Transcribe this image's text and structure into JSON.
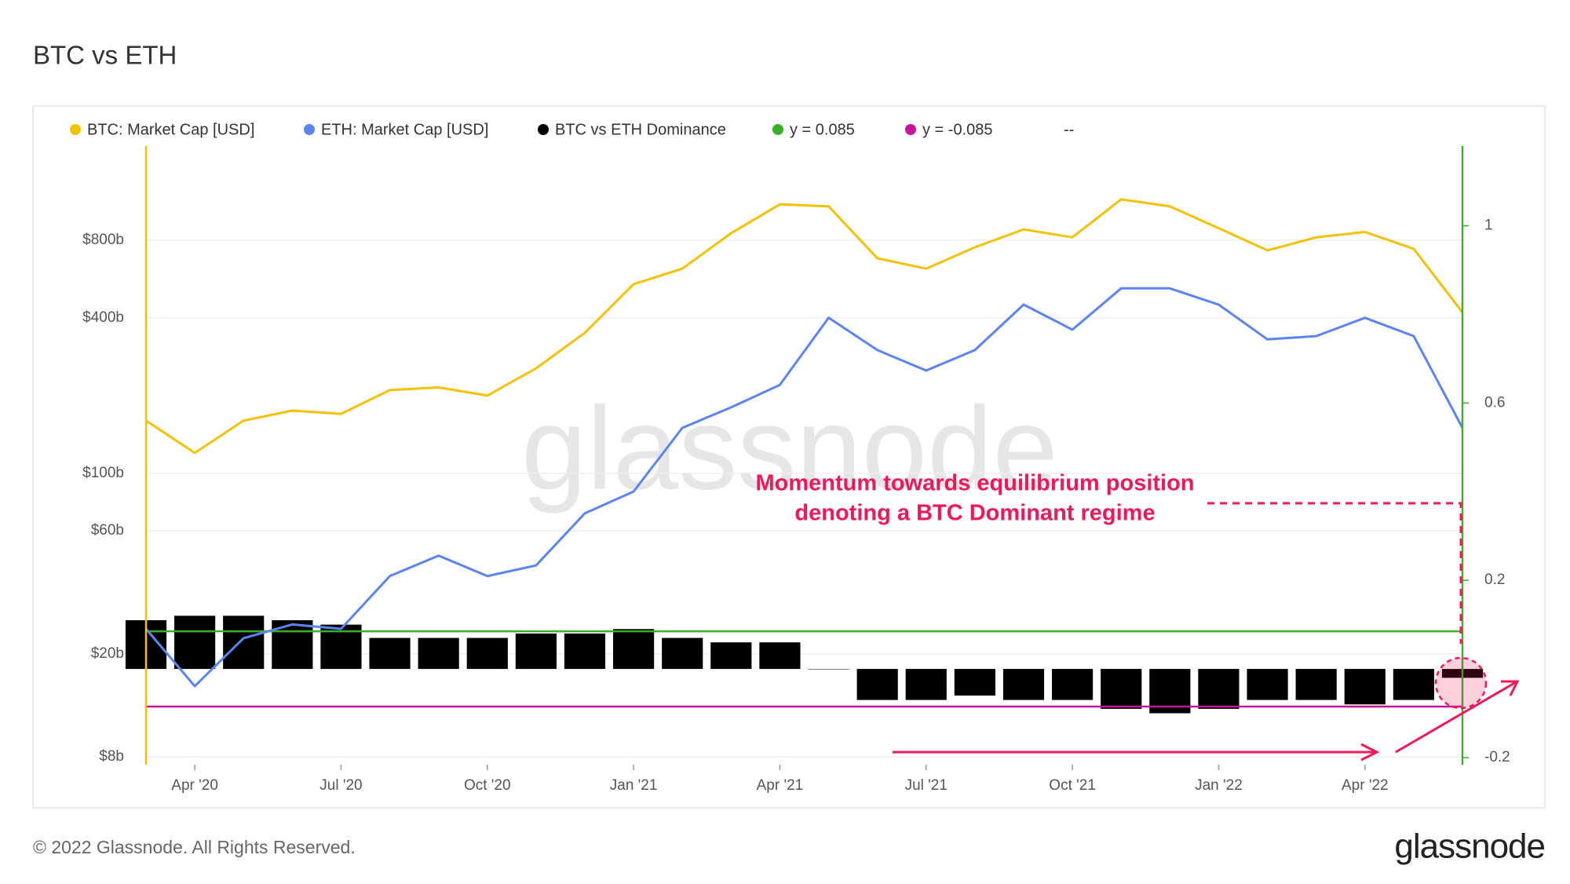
{
  "chart_data": {
    "type": "line",
    "title": "BTC vs ETH",
    "footer": "© 2022 Glassnode. All Rights Reserved.",
    "logo": "glassnode",
    "watermark": "glassnode",
    "legend_placeholder": "--",
    "annotation": [
      "Momentum towards equilibrium position",
      "denoting a BTC Dominant regime"
    ],
    "annotation_color": "#f0185a",
    "x": [
      "2020-03",
      "2020-04",
      "2020-05",
      "2020-06",
      "2020-07",
      "2020-08",
      "2020-09",
      "2020-10",
      "2020-11",
      "2020-12",
      "2021-01",
      "2021-02",
      "2021-03",
      "2021-04",
      "2021-05",
      "2021-06",
      "2021-07",
      "2021-08",
      "2021-09",
      "2021-10",
      "2021-11",
      "2021-12",
      "2022-01",
      "2022-02",
      "2022-03",
      "2022-04",
      "2022-05",
      "2022-06"
    ],
    "xlim": [
      "2020-03",
      "2022-06"
    ],
    "xticks": [
      {
        "value": "2020-04",
        "label": "Apr '20"
      },
      {
        "value": "2020-07",
        "label": "Jul '20"
      },
      {
        "value": "2020-10",
        "label": "Oct '20"
      },
      {
        "value": "2021-01",
        "label": "Jan '21"
      },
      {
        "value": "2021-04",
        "label": "Apr '21"
      },
      {
        "value": "2021-07",
        "label": "Jul '21"
      },
      {
        "value": "2021-10",
        "label": "Oct '21"
      },
      {
        "value": "2022-01",
        "label": "Jan '22"
      },
      {
        "value": "2022-04",
        "label": "Apr '22"
      }
    ],
    "ylog": true,
    "ylim": [
      7450000000,
      1850000000000
    ],
    "yticks": [
      {
        "value": 8000000000,
        "label": "$8b"
      },
      {
        "value": 20000000000,
        "label": "$20b"
      },
      {
        "value": 60000000000,
        "label": "$60b"
      },
      {
        "value": 100000000000,
        "label": "$100b"
      },
      {
        "value": 400000000000,
        "label": "$400b"
      },
      {
        "value": 800000000000,
        "label": "$800b"
      }
    ],
    "y2lim": [
      -0.216,
      1.18
    ],
    "y2ticks": [
      -0.2,
      0.2,
      0.6,
      1
    ],
    "grid": true,
    "series": [
      {
        "name": "BTC: Market Cap [USD]",
        "color": "#f2c200",
        "kind": "line",
        "values": [
          160000000000,
          120000000000,
          160000000000,
          175000000000,
          170000000000,
          210000000000,
          215000000000,
          200000000000,
          255000000000,
          350000000000,
          540000000000,
          620000000000,
          850000000000,
          1100000000000,
          1080000000000,
          680000000000,
          620000000000,
          750000000000,
          880000000000,
          820000000000,
          1150000000000,
          1080000000000,
          890000000000,
          730000000000,
          820000000000,
          860000000000,
          740000000000,
          420000000000
        ]
      },
      {
        "name": "ETH: Market Cap [USD]",
        "color": "#5b84f0",
        "kind": "line",
        "values": [
          25000000000,
          15000000000,
          23000000000,
          26000000000,
          25000000000,
          40000000000,
          48000000000,
          40000000000,
          44000000000,
          70000000000,
          85000000000,
          150000000000,
          180000000000,
          220000000000,
          400000000000,
          300000000000,
          250000000000,
          300000000000,
          450000000000,
          360000000000,
          520000000000,
          520000000000,
          450000000000,
          330000000000,
          340000000000,
          400000000000,
          340000000000,
          150000000000
        ]
      },
      {
        "name": "BTC vs ETH Dominance",
        "color": "#000000",
        "kind": "bar",
        "axis": "y2",
        "values": [
          0.11,
          0.12,
          0.12,
          0.11,
          0.1,
          0.07,
          0.07,
          0.07,
          0.08,
          0.08,
          0.09,
          0.07,
          0.06,
          0.06,
          0.0,
          -0.07,
          -0.07,
          -0.06,
          -0.07,
          -0.07,
          -0.09,
          -0.1,
          -0.09,
          -0.07,
          -0.07,
          -0.08,
          -0.07,
          -0.02
        ]
      },
      {
        "name": "y = 0.085",
        "color": "#3ab02a",
        "kind": "hline",
        "axis": "y2",
        "value": 0.085
      },
      {
        "name": "y = -0.085",
        "color": "#c7149a",
        "kind": "hline",
        "axis": "y2",
        "value": -0.085
      }
    ]
  }
}
